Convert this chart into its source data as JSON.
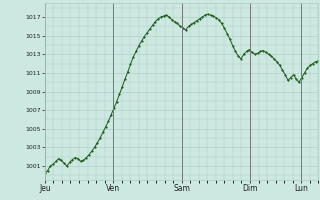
{
  "background_color": "#cce8e0",
  "plot_bg_color": "#cce8e0",
  "line_color": "#1a5c1a",
  "marker_color": "#1a5c1a",
  "grid_color": "#a8ccc6",
  "vline_color": "#777777",
  "ylabel_color": "#222222",
  "xlabel_color": "#222222",
  "ylim": [
    999.5,
    1018.5
  ],
  "yticks": [
    1001,
    1003,
    1005,
    1007,
    1009,
    1011,
    1013,
    1015,
    1017
  ],
  "day_labels": [
    "Jeu",
    "Ven",
    "Sam",
    "Dim",
    "Lun"
  ],
  "day_positions": [
    0,
    24,
    48,
    72,
    90
  ],
  "total_hours": 96,
  "pressure_data": [
    1000.2,
    1000.5,
    1001.0,
    1001.2,
    1001.5,
    1001.8,
    1001.6,
    1001.3,
    1001.0,
    1001.4,
    1001.7,
    1001.9,
    1001.8,
    1001.5,
    1001.6,
    1001.9,
    1002.2,
    1002.6,
    1003.0,
    1003.5,
    1004.0,
    1004.6,
    1005.2,
    1005.8,
    1006.5,
    1007.2,
    1007.9,
    1008.7,
    1009.5,
    1010.3,
    1011.1,
    1011.9,
    1012.7,
    1013.3,
    1013.9,
    1014.4,
    1014.9,
    1015.3,
    1015.7,
    1016.1,
    1016.5,
    1016.8,
    1017.0,
    1017.1,
    1017.2,
    1017.0,
    1016.7,
    1016.5,
    1016.3,
    1016.0,
    1015.8,
    1015.6,
    1016.0,
    1016.2,
    1016.4,
    1016.6,
    1016.8,
    1017.0,
    1017.2,
    1017.3,
    1017.2,
    1017.1,
    1016.9,
    1016.7,
    1016.3,
    1015.8,
    1015.2,
    1014.6,
    1013.9,
    1013.3,
    1012.8,
    1012.5,
    1013.0,
    1013.3,
    1013.5,
    1013.2,
    1013.0,
    1013.1,
    1013.3,
    1013.4,
    1013.2,
    1013.0,
    1012.8,
    1012.5,
    1012.2,
    1011.8,
    1011.3,
    1010.8,
    1010.2,
    1010.5,
    1010.8,
    1010.3,
    1010.0,
    1010.5,
    1011.0,
    1011.5,
    1011.8,
    1012.0,
    1012.2,
    1012.3
  ]
}
